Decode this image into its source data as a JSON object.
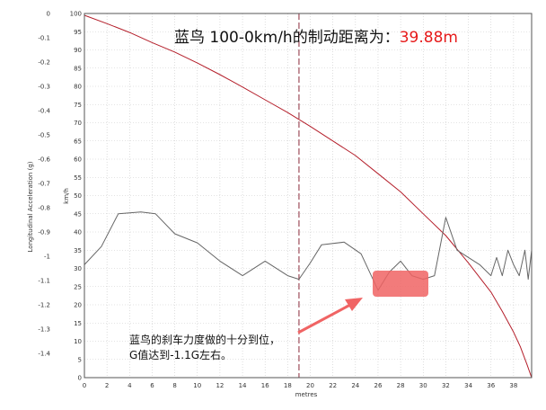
{
  "chart_data": {
    "type": "line",
    "title": "蓝鸟 100-0km/h的制动距离为：",
    "title_value": "39.88m",
    "xlabel": "metres",
    "ylabel_left": "Longitudinal Acceleration (g)",
    "ylabel_right": "km/h",
    "xlim": [
      0,
      39.6
    ],
    "ylim_left": [
      -1.5,
      0
    ],
    "ylim_right": [
      0,
      100
    ],
    "x_ticks": [
      "0",
      "2",
      "4",
      "6",
      "8",
      "10",
      "12",
      "14",
      "16",
      "18",
      "20",
      "22",
      "24",
      "26",
      "28",
      "30",
      "32",
      "34",
      "36",
      "38"
    ],
    "y_left_ticks": [
      "0",
      "-0.1",
      "-0.2",
      "-0.3",
      "-0.4",
      "-0.5",
      "-0.6",
      "-0.7",
      "-0.8",
      "-0.9",
      "-1",
      "-1.1",
      "-1.2",
      "-1.3",
      "-1.4"
    ],
    "y_right_ticks": [
      "100",
      "95",
      "90",
      "85",
      "80",
      "75",
      "70",
      "65",
      "60",
      "55",
      "50",
      "45",
      "40",
      "35",
      "30",
      "25",
      "20",
      "15",
      "10",
      "5",
      "0"
    ],
    "grid": true,
    "marker_line_x": 19,
    "series": [
      {
        "key": "speed",
        "axis": "right",
        "color": "#b41e2a",
        "x": [
          0,
          2,
          4,
          6,
          8,
          10,
          12,
          14,
          16,
          18,
          20,
          22,
          24,
          26,
          28,
          30,
          32,
          34,
          36,
          37,
          38,
          38.6,
          39.2,
          39.6
        ],
        "values": [
          99.5,
          97.2,
          94.8,
          92,
          89.4,
          86.4,
          83.2,
          79.8,
          76.3,
          72.8,
          69,
          65,
          61,
          56,
          51,
          45,
          39,
          31.5,
          23.5,
          18.2,
          12.5,
          8.5,
          3.5,
          0
        ]
      },
      {
        "key": "deceleration",
        "axis": "right",
        "color": "#666666",
        "x": [
          0,
          1.5,
          3,
          5,
          6.3,
          8,
          10,
          12,
          14,
          16,
          18,
          19,
          20,
          21,
          23,
          24.5,
          26,
          27,
          28,
          29,
          30,
          31,
          32,
          33,
          35,
          36,
          36.5,
          37,
          37.5,
          38,
          38.5,
          39,
          39.3,
          39.6
        ],
        "values": [
          31,
          36,
          45,
          45.5,
          45,
          39.5,
          37,
          32,
          28,
          32,
          28,
          27,
          31.5,
          36.5,
          37.2,
          34,
          24,
          29,
          32,
          28,
          27,
          28,
          44,
          35,
          31,
          28,
          33,
          28,
          35,
          31,
          28,
          35,
          27,
          35
        ]
      }
    ],
    "annotation": {
      "text_line1": "蓝鸟的刹车力度做的十分到位，",
      "text_line2": "G值达到-1.1G左右。",
      "box_color": "#f06464",
      "arrow_color": "#f06464"
    }
  }
}
